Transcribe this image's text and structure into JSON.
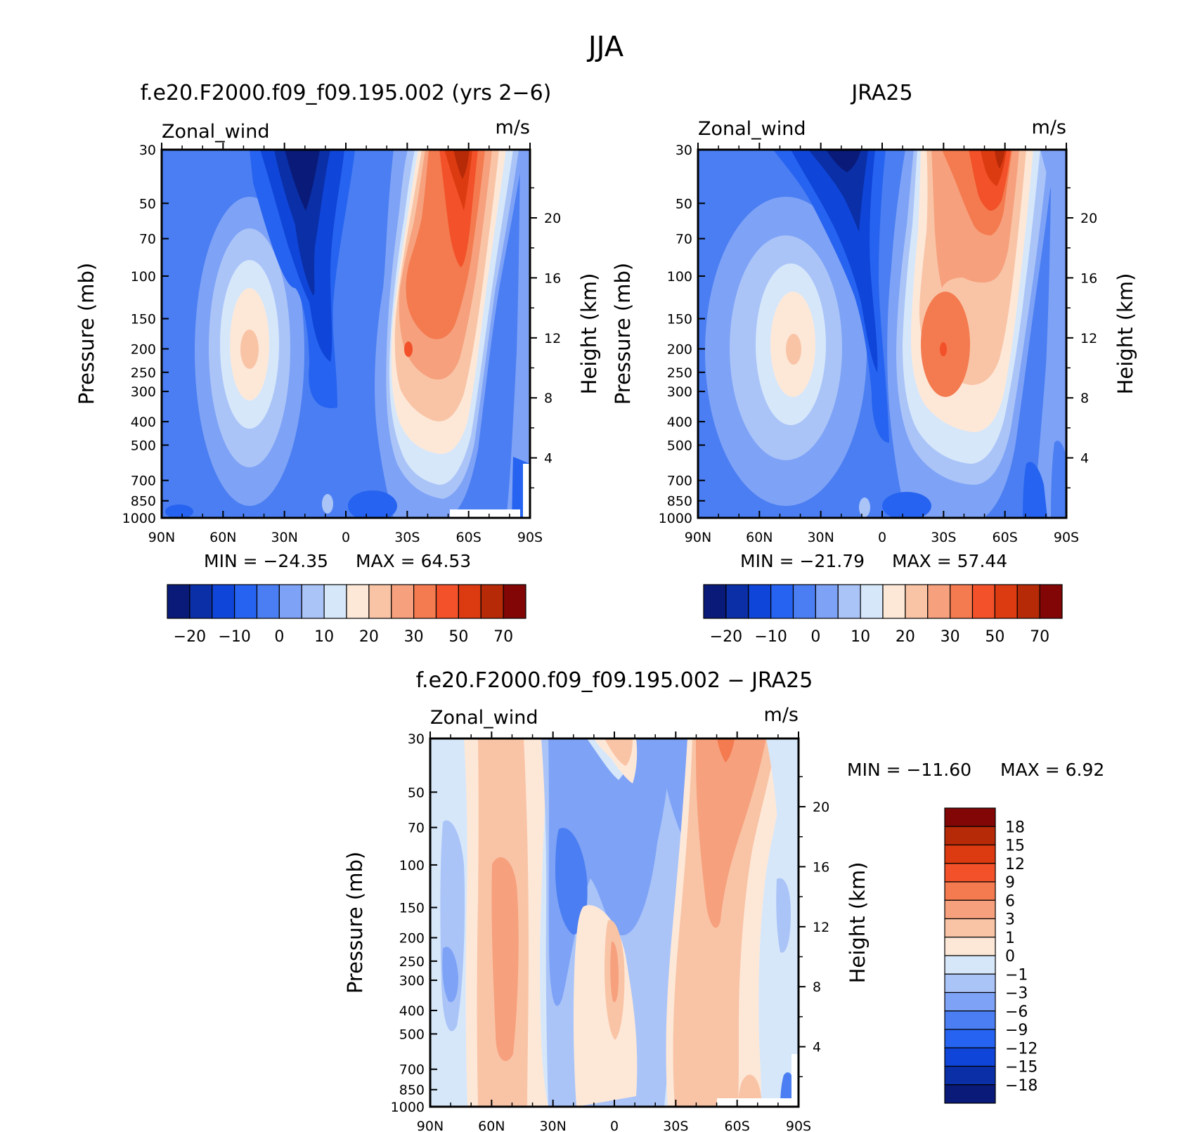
{
  "page_title": "JJA",
  "colors": {
    "model_scale": [
      "#0a1a78",
      "#0a2fa6",
      "#0f45d8",
      "#2663f0",
      "#4a7ef2",
      "#7ea2f6",
      "#aac4f8",
      "#d6e7fa",
      "#fde8d8",
      "#f9c4a6",
      "#f6a07d",
      "#f47a4f",
      "#f25129",
      "#dc3a10",
      "#b62a08",
      "#820606"
    ],
    "diff_scale": [
      "#0a1a78",
      "#0a2fa6",
      "#0f45d8",
      "#2663f0",
      "#4a7ef2",
      "#7ea2f6",
      "#aac4f8",
      "#d6e7fa",
      "#fde8d8",
      "#f9c4a6",
      "#f6a07d",
      "#f47a4f",
      "#f25129",
      "#dc3a10",
      "#b62a08",
      "#820606"
    ],
    "missing": "#ffffff"
  },
  "chart_data": [
    {
      "id": "model",
      "type": "heatmap",
      "title": "f.e20.F2000.f09_f09.195.002 (yrs 2−6)",
      "variable_label": "Zonal_wind",
      "units_label": "m/s",
      "xlabel": "",
      "ylabel": "Pressure (mb)",
      "y2label": "Height (km)",
      "x_ticks": [
        "90N",
        "60N",
        "30N",
        "0",
        "30S",
        "60S",
        "90S"
      ],
      "x_tick_values": [
        90,
        60,
        30,
        0,
        -30,
        -60,
        -90
      ],
      "y_ticks": [
        "30",
        "50",
        "70",
        "100",
        "150",
        "200",
        "250",
        "300",
        "400",
        "500",
        "700",
        "850",
        "1000"
      ],
      "y_tick_values": [
        30,
        50,
        70,
        100,
        150,
        200,
        250,
        300,
        400,
        500,
        700,
        850,
        1000
      ],
      "y2_ticks": [
        "4",
        "8",
        "12",
        "16",
        "20"
      ],
      "y2_tick_values": [
        4,
        8,
        12,
        16,
        20
      ],
      "xlim": [
        90,
        -90
      ],
      "ylim_pressure": [
        1000,
        30
      ],
      "y_scale": "log",
      "min_text": "MIN = −24.35",
      "max_text": "MAX =   64.53",
      "min": -24.35,
      "max": 64.53,
      "colorbar": {
        "orientation": "horizontal",
        "labels": [
          "−20",
          "−10",
          "0",
          "10",
          "20",
          "30",
          "50",
          "70"
        ],
        "levels": [
          -25,
          -20,
          -15,
          -10,
          -5,
          0,
          5,
          10,
          15,
          20,
          25,
          30,
          40,
          50,
          60,
          70
        ]
      },
      "grid": false
    },
    {
      "id": "obs",
      "type": "heatmap",
      "title": "JRA25",
      "variable_label": "Zonal_wind",
      "units_label": "m/s",
      "xlabel": "",
      "ylabel": "Pressure (mb)",
      "y2label": "Height (km)",
      "x_ticks": [
        "90N",
        "60N",
        "30N",
        "0",
        "30S",
        "60S",
        "90S"
      ],
      "x_tick_values": [
        90,
        60,
        30,
        0,
        -30,
        -60,
        -90
      ],
      "y_ticks": [
        "30",
        "50",
        "70",
        "100",
        "150",
        "200",
        "250",
        "300",
        "400",
        "500",
        "700",
        "850",
        "1000"
      ],
      "y_tick_values": [
        30,
        50,
        70,
        100,
        150,
        200,
        250,
        300,
        400,
        500,
        700,
        850,
        1000
      ],
      "y2_ticks": [
        "4",
        "8",
        "12",
        "16",
        "20"
      ],
      "y2_tick_values": [
        4,
        8,
        12,
        16,
        20
      ],
      "xlim": [
        90,
        -90
      ],
      "ylim_pressure": [
        1000,
        30
      ],
      "y_scale": "log",
      "min_text": "MIN = −21.79",
      "max_text": "MAX =   57.44",
      "min": -21.79,
      "max": 57.44,
      "colorbar": {
        "orientation": "horizontal",
        "labels": [
          "−20",
          "−10",
          "0",
          "10",
          "20",
          "30",
          "50",
          "70"
        ],
        "levels": [
          -25,
          -20,
          -15,
          -10,
          -5,
          0,
          5,
          10,
          15,
          20,
          25,
          30,
          40,
          50,
          60,
          70
        ]
      },
      "grid": false
    },
    {
      "id": "diff",
      "type": "heatmap",
      "title": "f.e20.F2000.f09_f09.195.002 − JRA25",
      "variable_label": "Zonal_wind",
      "units_label": "m/s",
      "xlabel": "",
      "ylabel": "Pressure (mb)",
      "y2label": "Height (km)",
      "x_ticks": [
        "90N",
        "60N",
        "30N",
        "0",
        "30S",
        "60S",
        "90S"
      ],
      "x_tick_values": [
        90,
        60,
        30,
        0,
        -30,
        -60,
        -90
      ],
      "y_ticks": [
        "30",
        "50",
        "70",
        "100",
        "150",
        "200",
        "250",
        "300",
        "400",
        "500",
        "700",
        "850",
        "1000"
      ],
      "y_tick_values": [
        30,
        50,
        70,
        100,
        150,
        200,
        250,
        300,
        400,
        500,
        700,
        850,
        1000
      ],
      "y2_ticks": [
        "4",
        "8",
        "12",
        "16",
        "20"
      ],
      "y2_tick_values": [
        4,
        8,
        12,
        16,
        20
      ],
      "xlim": [
        90,
        -90
      ],
      "ylim_pressure": [
        1000,
        30
      ],
      "y_scale": "log",
      "min_text": "MIN = −11.60",
      "max_text": "MAX =     6.92",
      "min": -11.6,
      "max": 6.92,
      "colorbar": {
        "orientation": "vertical",
        "labels": [
          "18",
          "15",
          "12",
          "9",
          "6",
          "3",
          "1",
          "0",
          "−1",
          "−3",
          "−6",
          "−9",
          "−12",
          "−15",
          "−18"
        ]
      },
      "grid": false
    }
  ]
}
